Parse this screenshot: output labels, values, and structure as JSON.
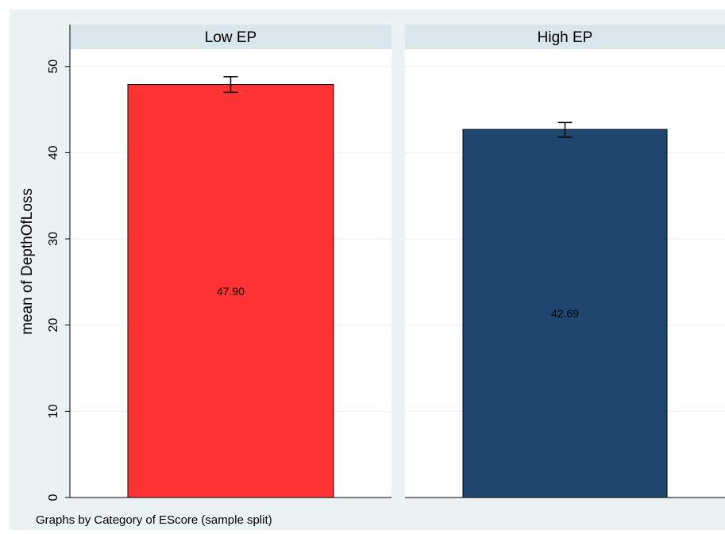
{
  "chart_data": {
    "type": "bar",
    "ylabel": "mean of DepthOfLoss",
    "ylim": [
      0,
      52
    ],
    "yticks": [
      0,
      10,
      20,
      30,
      40,
      50
    ],
    "grid": true,
    "note": "Graphs by Category of EScore (sample split)",
    "panels": [
      {
        "title": "Low EP",
        "value": 47.9,
        "value_label": "47.90",
        "error_low": 47.0,
        "error_high": 48.8,
        "color": "#ff3333"
      },
      {
        "title": "High EP",
        "value": 42.69,
        "value_label": "42.69",
        "error_low": 41.8,
        "error_high": 43.5,
        "color": "#1f466e"
      }
    ],
    "colors": {
      "outer_background": "#eaf2f3",
      "plot_background": "#ffffff",
      "strip_background": "#d9e6eb",
      "gridline": "#e9eff1",
      "bar_outline": "#000000"
    }
  }
}
